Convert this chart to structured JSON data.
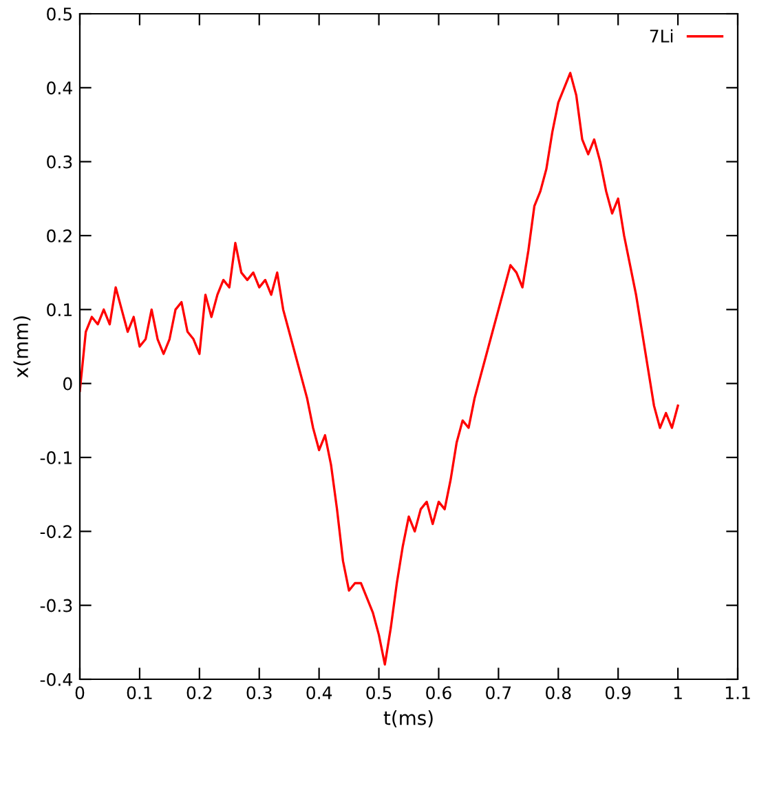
{
  "chart_data": {
    "type": "line",
    "xlabel": "t(ms)",
    "ylabel": "x(mm)",
    "xlim": [
      0,
      1.1
    ],
    "ylim": [
      -0.4,
      0.5
    ],
    "xticks": [
      0,
      0.1,
      0.2,
      0.3,
      0.4,
      0.5,
      0.6,
      0.7,
      0.8,
      0.9,
      1,
      1.1
    ],
    "yticks": [
      -0.4,
      -0.3,
      -0.2,
      -0.1,
      0,
      0.1,
      0.2,
      0.3,
      0.4,
      0.5
    ],
    "grid": false,
    "legend": "top right",
    "marker": "none",
    "line_style": "solid",
    "series": [
      {
        "name": "7Li",
        "color": "#ff0000",
        "x": [
          0,
          0.005,
          0.01,
          0.02,
          0.03,
          0.04,
          0.05,
          0.06,
          0.07,
          0.08,
          0.09,
          0.1,
          0.11,
          0.12,
          0.13,
          0.14,
          0.15,
          0.16,
          0.17,
          0.18,
          0.19,
          0.2,
          0.21,
          0.22,
          0.23,
          0.24,
          0.25,
          0.26,
          0.27,
          0.28,
          0.29,
          0.3,
          0.31,
          0.32,
          0.33,
          0.34,
          0.35,
          0.36,
          0.37,
          0.38,
          0.39,
          0.4,
          0.41,
          0.42,
          0.43,
          0.44,
          0.45,
          0.46,
          0.47,
          0.48,
          0.49,
          0.5,
          0.51,
          0.52,
          0.53,
          0.54,
          0.55,
          0.56,
          0.57,
          0.58,
          0.59,
          0.6,
          0.61,
          0.62,
          0.63,
          0.64,
          0.65,
          0.66,
          0.67,
          0.68,
          0.69,
          0.7,
          0.71,
          0.72,
          0.73,
          0.74,
          0.75,
          0.76,
          0.77,
          0.78,
          0.79,
          0.8,
          0.81,
          0.82,
          0.83,
          0.84,
          0.85,
          0.86,
          0.87,
          0.88,
          0.89,
          0.9,
          0.91,
          0.92,
          0.93,
          0.94,
          0.95,
          0.96,
          0.97,
          0.98,
          0.99,
          1.0
        ],
        "values": [
          -0.01,
          0.03,
          0.07,
          0.09,
          0.08,
          0.1,
          0.08,
          0.13,
          0.1,
          0.07,
          0.09,
          0.05,
          0.06,
          0.1,
          0.06,
          0.04,
          0.06,
          0.1,
          0.11,
          0.07,
          0.06,
          0.04,
          0.12,
          0.09,
          0.12,
          0.14,
          0.13,
          0.19,
          0.15,
          0.14,
          0.15,
          0.13,
          0.14,
          0.12,
          0.15,
          0.1,
          0.07,
          0.04,
          0.01,
          -0.02,
          -0.06,
          -0.09,
          -0.07,
          -0.11,
          -0.17,
          -0.24,
          -0.28,
          -0.27,
          -0.27,
          -0.29,
          -0.31,
          -0.34,
          -0.38,
          -0.33,
          -0.27,
          -0.22,
          -0.18,
          -0.2,
          -0.17,
          -0.16,
          -0.19,
          -0.16,
          -0.17,
          -0.13,
          -0.08,
          -0.05,
          -0.06,
          -0.02,
          0.01,
          0.04,
          0.07,
          0.1,
          0.13,
          0.16,
          0.15,
          0.13,
          0.18,
          0.24,
          0.26,
          0.29,
          0.34,
          0.38,
          0.4,
          0.42,
          0.39,
          0.33,
          0.31,
          0.33,
          0.3,
          0.26,
          0.23,
          0.25,
          0.2,
          0.16,
          0.12,
          0.07,
          0.02,
          -0.03,
          -0.06,
          -0.04,
          -0.06,
          -0.03
        ]
      }
    ]
  }
}
